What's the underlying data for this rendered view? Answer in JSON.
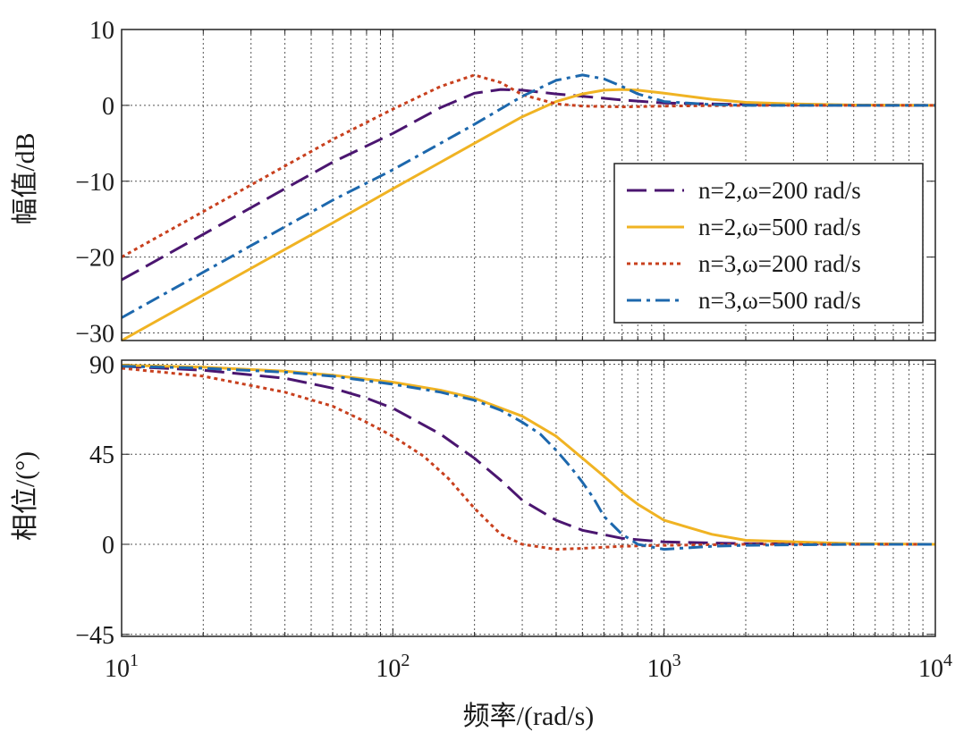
{
  "chart_data": [
    {
      "type": "line",
      "panel": "magnitude",
      "ylabel": "幅值/dB",
      "xscale": "log",
      "xlim": [
        10,
        10000
      ],
      "ylim": [
        -31,
        10
      ],
      "xticks": [
        10,
        100,
        1000,
        10000
      ],
      "yticks": [
        {
          "value": 10,
          "label": "10"
        },
        {
          "value": 0,
          "label": "0"
        },
        {
          "value": -10,
          "label": "−10"
        },
        {
          "value": -20,
          "label": "−20"
        },
        {
          "value": -30,
          "label": "−30"
        }
      ],
      "grid": true,
      "legend_position": "right",
      "series": [
        {
          "name": "n=2,ω=200 rad/s",
          "color": "#4b1670",
          "style": "dashed",
          "x": [
            10,
            20,
            40,
            60,
            100,
            150,
            200,
            250,
            300,
            400,
            500,
            700,
            1000,
            2000,
            5000,
            10000
          ],
          "y": [
            -23,
            -17,
            -11,
            -7.5,
            -3.7,
            -0.3,
            1.6,
            2.1,
            2.0,
            1.5,
            1.2,
            0.7,
            0.3,
            0.1,
            0,
            0
          ]
        },
        {
          "name": "n=2,ω=500 rad/s",
          "color": "#f0b323",
          "style": "solid",
          "x": [
            10,
            20,
            40,
            60,
            100,
            150,
            200,
            300,
            400,
            500,
            600,
            700,
            800,
            1000,
            1500,
            2000,
            3000,
            5000,
            10000
          ],
          "y": [
            -31,
            -25,
            -19,
            -15.5,
            -11,
            -7.5,
            -5,
            -1.5,
            0.5,
            1.5,
            2.0,
            2.1,
            2.0,
            1.6,
            0.8,
            0.4,
            0.2,
            0.05,
            0
          ]
        },
        {
          "name": "n=3,ω=200 rad/s",
          "color": "#c8401e",
          "style": "dotted",
          "x": [
            10,
            20,
            40,
            60,
            100,
            150,
            200,
            250,
            300,
            400,
            500,
            700,
            1000,
            2000,
            5000,
            10000
          ],
          "y": [
            -20,
            -14,
            -8,
            -4.5,
            -0.5,
            2.5,
            4.0,
            3.0,
            1.4,
            0.2,
            -0.1,
            -0.2,
            -0.1,
            0,
            0,
            0
          ]
        },
        {
          "name": "n=3,ω=500 rad/s",
          "color": "#1d68ad",
          "style": "dashdot",
          "x": [
            10,
            20,
            40,
            60,
            100,
            150,
            200,
            300,
            400,
            500,
            600,
            700,
            800,
            1000,
            1500,
            2000,
            5000,
            10000
          ],
          "y": [
            -28,
            -22,
            -16,
            -12.5,
            -8.5,
            -5,
            -2.5,
            1.2,
            3.3,
            4.0,
            3.5,
            2.5,
            1.5,
            0.5,
            0.1,
            0,
            0,
            0
          ]
        }
      ]
    },
    {
      "type": "line",
      "panel": "phase",
      "xlabel": "频率/(rad/s)",
      "ylabel": "相位/(°)",
      "xscale": "log",
      "xlim": [
        10,
        10000
      ],
      "ylim": [
        -46,
        92
      ],
      "xticks": [
        10,
        100,
        1000,
        10000
      ],
      "yticks": [
        {
          "value": 90,
          "label": "90"
        },
        {
          "value": 45,
          "label": "45"
        },
        {
          "value": 0,
          "label": "0"
        },
        {
          "value": -45,
          "label": "−45"
        }
      ],
      "grid": true,
      "series": [
        {
          "name": "n=2,ω=200 rad/s",
          "color": "#4b1670",
          "style": "dashed",
          "x": [
            10,
            20,
            40,
            60,
            80,
            100,
            150,
            200,
            250,
            300,
            400,
            500,
            700,
            1000,
            2000,
            5000,
            10000
          ],
          "y": [
            89,
            87,
            83,
            78,
            73,
            68,
            55,
            43,
            32,
            22,
            12,
            7,
            3,
            1.2,
            0.3,
            0,
            0
          ]
        },
        {
          "name": "n=2,ω=500 rad/s",
          "color": "#f0b323",
          "style": "solid",
          "x": [
            10,
            20,
            40,
            60,
            100,
            150,
            200,
            300,
            400,
            500,
            600,
            700,
            800,
            1000,
            1500,
            2000,
            5000,
            10000
          ],
          "y": [
            89.5,
            88.5,
            86.5,
            84.5,
            81,
            77,
            73,
            64,
            54,
            43,
            34,
            26,
            20,
            12,
            5,
            2,
            0.3,
            0
          ]
        },
        {
          "name": "n=3,ω=200 rad/s",
          "color": "#c8401e",
          "style": "dotted",
          "x": [
            10,
            20,
            40,
            60,
            80,
            100,
            130,
            160,
            200,
            250,
            300,
            400,
            500,
            700,
            1000,
            2000,
            10000
          ],
          "y": [
            88,
            84,
            76,
            69,
            61,
            54,
            44,
            33,
            18,
            5,
            0,
            -2.5,
            -2,
            -1,
            -0.5,
            0,
            0
          ]
        },
        {
          "name": "n=3,ω=500 rad/s",
          "color": "#1d68ad",
          "style": "dashdot",
          "x": [
            10,
            20,
            40,
            60,
            100,
            150,
            200,
            250,
            300,
            350,
            400,
            450,
            500,
            550,
            600,
            700,
            800,
            1000,
            1500,
            2000,
            5000,
            10000
          ],
          "y": [
            89,
            88,
            86,
            84,
            80,
            76,
            72,
            67,
            61,
            55,
            47,
            39,
            31,
            23,
            14,
            5,
            0,
            -2.5,
            -1,
            -0.5,
            0,
            0
          ]
        }
      ]
    }
  ]
}
